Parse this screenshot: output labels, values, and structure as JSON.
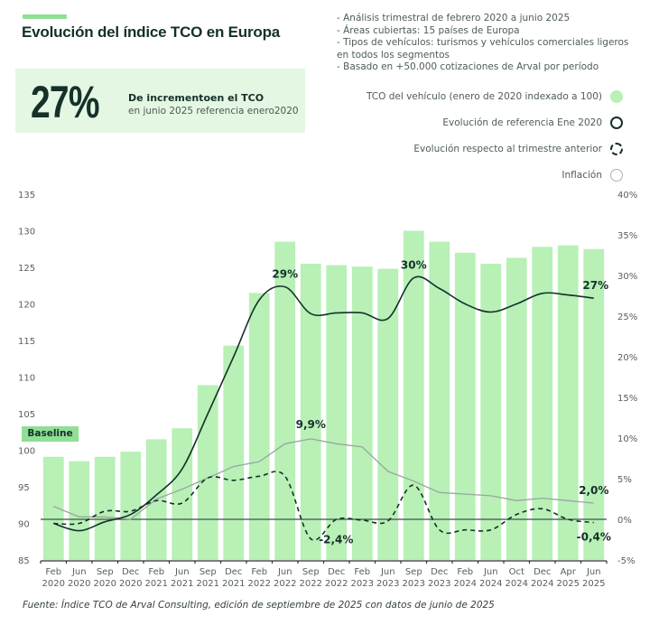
{
  "header": {
    "title": "Evolución del índice TCO en Europa"
  },
  "kpi": {
    "value": "27%",
    "main": "De incrementoen el TCO",
    "sub": "en junio 2025 referencia enero2020"
  },
  "notes": [
    "- Análisis trimestral de febrero 2020 a junio 2025",
    "- Áreas cubiertas: 15 países de Europa",
    "- Tipos de vehículos: turismos y vehículos comerciales ligeros",
    "en todos los segmentos",
    "- Basado en +50.000 cotizaciones de Arval por período"
  ],
  "legend": [
    {
      "label": "TCO del vehículo (enero de 2020 indexado a 100)",
      "icon": "filled-green-circle"
    },
    {
      "label": "Evolución de referencia Ene 2020",
      "icon": "solid-dark-circle"
    },
    {
      "label": "Evolución respecto al trimestre anterior",
      "icon": "dashed-dark-circle"
    },
    {
      "label": "Inflación",
      "icon": "grey-circle"
    }
  ],
  "baseline_label": "Baseline",
  "source": "Fuente: Índice TCO de Arval Consulting, edición de septiembre de 2025 con datos de junio de 2025",
  "colors": {
    "bar": "#b8f0b6",
    "reference_line": "#16302a",
    "qoq_line": "#16302a",
    "inflation_line": "#9aa59f",
    "zero_line": "#3f4f49",
    "accent": "#8fdf95"
  },
  "chart_data": {
    "type": "bar",
    "title": "Evolución del índice TCO en Europa",
    "categories": [
      [
        "Feb",
        "2020"
      ],
      [
        "Jun",
        "2020"
      ],
      [
        "Sep",
        "2020"
      ],
      [
        "Dec",
        "2020"
      ],
      [
        "Feb",
        "2021"
      ],
      [
        "Jun",
        "2021"
      ],
      [
        "Sep",
        "2021"
      ],
      [
        "Dec",
        "2021"
      ],
      [
        "Feb",
        "2022"
      ],
      [
        "Jun",
        "2022"
      ],
      [
        "Sep",
        "2022"
      ],
      [
        "Dec",
        "2022"
      ],
      [
        "Feb",
        "2023"
      ],
      [
        "Jun",
        "2023"
      ],
      [
        "Sep",
        "2023"
      ],
      [
        "Dec",
        "2023"
      ],
      [
        "Feb",
        "2024"
      ],
      [
        "Jun",
        "2024"
      ],
      [
        "Oct",
        "2024"
      ],
      [
        "Dec",
        "2024"
      ],
      [
        "Apr",
        "2025"
      ],
      [
        "Jun",
        "2025"
      ]
    ],
    "left_axis": {
      "min": 85,
      "max": 135,
      "ticks": [
        85,
        90,
        95,
        100,
        105,
        110,
        115,
        120,
        125,
        130,
        135
      ]
    },
    "right_axis": {
      "min": -5,
      "max": 40,
      "ticks": [
        "-5%",
        "0%",
        "5%",
        "10%",
        "15%",
        "20%",
        "25%",
        "30%",
        "35%",
        "40%"
      ],
      "tick_values": [
        -5,
        0,
        5,
        10,
        15,
        20,
        25,
        30,
        35,
        40
      ]
    },
    "series": [
      {
        "name": "TCO del vehículo (enero de 2020 indexado a 100)",
        "type": "bar",
        "axis": "left",
        "values": [
          99.1,
          98.5,
          99.1,
          99.8,
          101.5,
          103.0,
          108.9,
          114.3,
          121.5,
          128.5,
          125.5,
          125.3,
          125.1,
          124.8,
          130.0,
          128.5,
          127.0,
          125.5,
          126.3,
          127.8,
          128.0,
          127.5
        ]
      },
      {
        "name": "Evolución de referencia Ene 2020",
        "type": "line",
        "axis": "right",
        "style": "solid",
        "values": [
          -0.5,
          -1.4,
          -0.3,
          0.6,
          3.0,
          6.2,
          13.0,
          20.0,
          27.0,
          28.6,
          25.3,
          25.4,
          25.4,
          24.7,
          29.7,
          28.4,
          26.5,
          25.5,
          26.5,
          27.8,
          27.6,
          27.2
        ]
      },
      {
        "name": "Evolución respecto al trimestre anterior",
        "type": "line",
        "axis": "right",
        "style": "dashed",
        "values": [
          -0.5,
          -0.5,
          1.0,
          1.0,
          2.3,
          2.0,
          5.1,
          4.8,
          5.3,
          5.3,
          -2.4,
          0.0,
          -0.1,
          -0.2,
          4.2,
          -1.3,
          -1.3,
          -1.3,
          0.6,
          1.3,
          0.0,
          -0.4
        ]
      },
      {
        "name": "Inflación",
        "type": "line",
        "axis": "right",
        "style": "solid-thin",
        "values": [
          1.6,
          0.3,
          0.3,
          0.0,
          2.5,
          3.7,
          5.1,
          6.5,
          7.1,
          9.3,
          9.9,
          9.3,
          8.9,
          5.9,
          4.7,
          3.3,
          3.1,
          2.9,
          2.3,
          2.6,
          2.3,
          2.0
        ]
      }
    ],
    "annotations": [
      {
        "text": "29%",
        "series": "Evolución de referencia Ene 2020",
        "category_index": 9
      },
      {
        "text": "30%",
        "series": "Evolución de referencia Ene 2020",
        "category_index": 14
      },
      {
        "text": "27%",
        "series": "Evolución de referencia Ene 2020",
        "category_index": 21
      },
      {
        "text": "9,9%",
        "series": "Inflación",
        "category_index": 10
      },
      {
        "text": "-2,4%",
        "series": "Evolución respecto al trimestre anterior",
        "category_index": 10
      },
      {
        "text": "2,0%",
        "series": "Inflación",
        "category_index": 21
      },
      {
        "text": "-0,4%",
        "series": "Evolución respecto al trimestre anterior",
        "category_index": 21
      }
    ],
    "legend_position": "top-right",
    "grid": false,
    "reference_line": {
      "axis": "right",
      "value": 0
    }
  }
}
